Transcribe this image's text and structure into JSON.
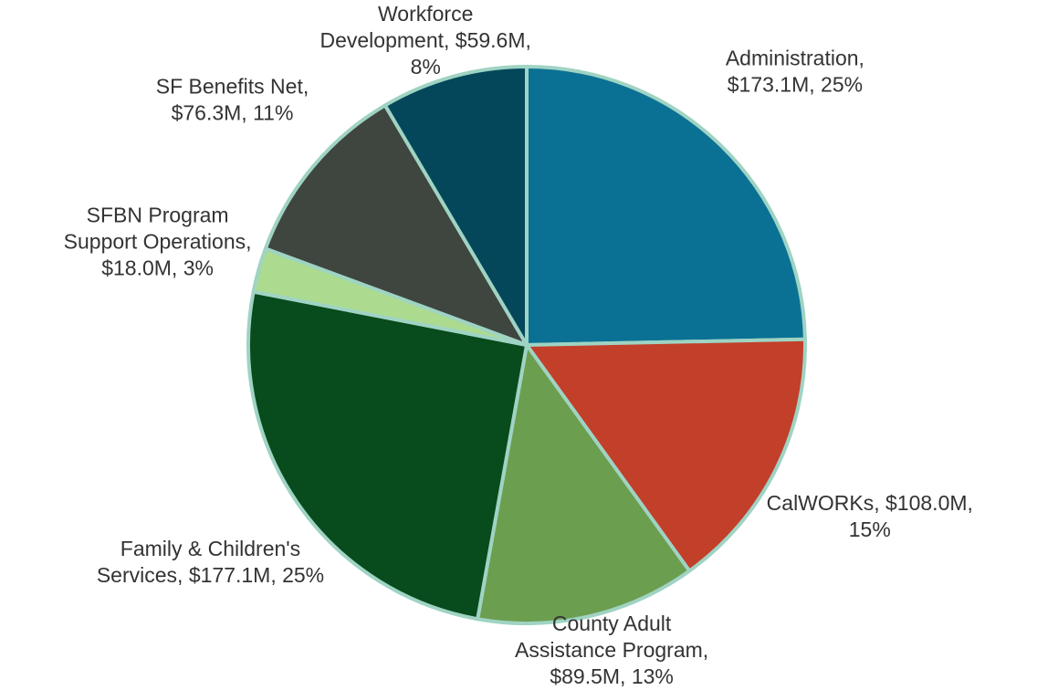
{
  "chart_data": {
    "type": "pie",
    "title": "",
    "slices": [
      {
        "name": "Administration",
        "value": 173.1,
        "percent": 25,
        "label_lines": [
          "Administration,",
          "$173.1M, 25%"
        ],
        "color": "#0a7194"
      },
      {
        "name": "CalWORKs",
        "value": 108.0,
        "percent": 15,
        "label_lines": [
          "CalWORKs, $108.0M,",
          "15%"
        ],
        "color": "#c23f2a"
      },
      {
        "name": "County Adult Assistance Program",
        "value": 89.5,
        "percent": 13,
        "label_lines": [
          "County Adult",
          "Assistance Program,",
          "$89.5M, 13%"
        ],
        "color": "#6c9e4f"
      },
      {
        "name": "Family & Children's Services",
        "value": 177.1,
        "percent": 25,
        "label_lines": [
          "Family & Children's",
          "Services, $177.1M, 25%"
        ],
        "color": "#084b1c"
      },
      {
        "name": "SFBN Program Support Operations",
        "value": 18.0,
        "percent": 3,
        "label_lines": [
          "SFBN Program",
          "Support Operations,",
          "$18.0M, 3%"
        ],
        "color": "#acdb90"
      },
      {
        "name": "SF Benefits Net",
        "value": 76.3,
        "percent": 11,
        "label_lines": [
          "SF Benefits Net,",
          "$76.3M, 11%"
        ],
        "color": "#3f453f"
      },
      {
        "name": "Workforce Development",
        "value": 59.6,
        "percent": 8,
        "label_lines": [
          "Workforce",
          "Development, $59.6M,",
          "8%"
        ],
        "color": "#05475a"
      }
    ],
    "slice_border_color": "#9fd3c3"
  }
}
